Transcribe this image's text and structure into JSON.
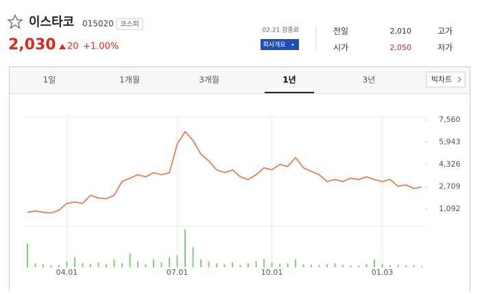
{
  "header": {
    "name": "이스타코",
    "code": "015020",
    "market": "코스피",
    "price": "2,030",
    "change": "20",
    "change_rate": "+1.00%",
    "status": "02.21 장종료",
    "company_button": "회사개요",
    "stats_left": [
      {
        "label": "전일",
        "value": "2,010"
      },
      {
        "label": "시가",
        "value": "2,050"
      }
    ],
    "stats_right": [
      "고가",
      "저가"
    ]
  },
  "tabs": [
    "1일",
    "1개월",
    "3개월",
    "1년",
    "3년"
  ],
  "active_tab": 3,
  "big_chart": "빅차트",
  "chart_data": {
    "type": "line",
    "categories": [
      null,
      null,
      null,
      null,
      null,
      "04.01",
      null,
      null,
      null,
      null,
      null,
      null,
      null,
      null,
      null,
      null,
      null,
      null,
      null,
      "07.01",
      null,
      null,
      null,
      null,
      null,
      null,
      null,
      null,
      null,
      null,
      null,
      "10.01",
      null,
      null,
      null,
      null,
      null,
      null,
      null,
      null,
      null,
      null,
      null,
      null,
      null,
      "01.03",
      null,
      null,
      null,
      null,
      null
    ],
    "values": [
      850,
      950,
      850,
      800,
      1000,
      1500,
      1600,
      1500,
      2090,
      1890,
      1840,
      2090,
      3085,
      3330,
      3580,
      3430,
      3730,
      3580,
      3730,
      5820,
      6720,
      6070,
      5075,
      4580,
      3930,
      3730,
      3930,
      3430,
      3230,
      3580,
      4080,
      3930,
      4330,
      4180,
      4830,
      4080,
      3830,
      3580,
      3085,
      3230,
      3085,
      3330,
      3230,
      3430,
      3230,
      3085,
      3230,
      2740,
      2840,
      2590,
      2690
    ],
    "color": "#f26e3c",
    "ylim": [
      94,
      7810
    ],
    "yticks": [
      {
        "value": 7560,
        "label": "7,560"
      },
      {
        "value": 5943,
        "label": "5,943"
      },
      {
        "value": 4326,
        "label": "4,326"
      },
      {
        "value": 2709,
        "label": "2,709"
      },
      {
        "value": 1092,
        "label": "1,092"
      }
    ],
    "volume": {
      "type": "bar",
      "values": [
        60,
        10,
        8,
        5,
        6,
        15,
        25,
        10,
        8,
        12,
        8,
        20,
        10,
        35,
        15,
        8,
        20,
        12,
        25,
        30,
        95,
        50,
        20,
        15,
        10,
        8,
        12,
        6,
        10,
        15,
        20,
        12,
        8,
        10,
        20,
        8,
        6,
        5,
        8,
        10,
        6,
        5,
        4,
        8,
        20,
        8,
        5,
        6,
        4,
        5,
        3
      ],
      "color": "#7ed36e",
      "ylim": [
        0,
        100
      ]
    }
  }
}
